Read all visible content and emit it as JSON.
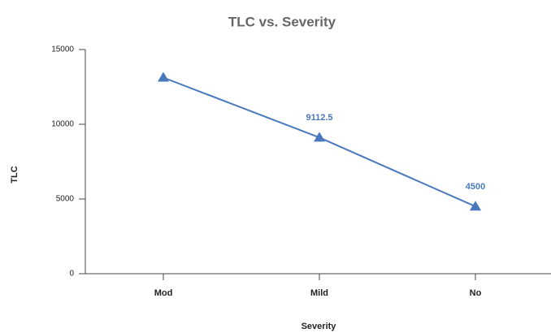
{
  "chart_data": {
    "type": "line",
    "title": "TLC vs. Severity",
    "x_label": "Severity",
    "y_label": "TLC",
    "categories": [
      "Mod",
      "Mild",
      "No"
    ],
    "series": [
      {
        "name": "TLC",
        "color": "#4a78bd",
        "values": [
          13125,
          9112.5,
          4500
        ],
        "value_labels": [
          null,
          "9112.5",
          "4500"
        ]
      }
    ],
    "ylim": [
      0,
      15000
    ],
    "yticks": [
      0,
      5000,
      10000,
      15000
    ],
    "grid": false
  }
}
